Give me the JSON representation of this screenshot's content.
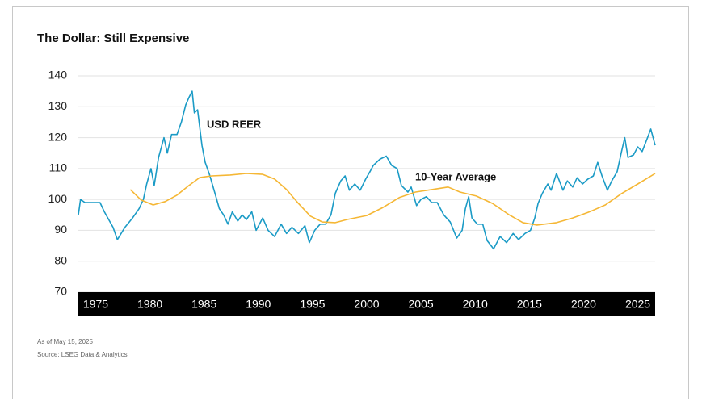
{
  "chart_data": {
    "type": "line",
    "title": "The Dollar: Still Expensive",
    "annotations": [
      "USD REER",
      "10-Year Average"
    ],
    "notes": [
      "As of May 15, 2025",
      "Source: LSEG Data & Analytics"
    ],
    "xlim": [
      1973.4,
      2026.6
    ],
    "xticks": [
      1975,
      1980,
      1985,
      1990,
      1995,
      2000,
      2005,
      2010,
      2015,
      2020,
      2025
    ],
    "ylim": [
      70,
      140
    ],
    "yticks": [
      70,
      80,
      90,
      100,
      110,
      120,
      130,
      140
    ],
    "grid": true,
    "series": [
      {
        "name": "USD REER",
        "color": "#1b9bc6",
        "x": [
          1973.4,
          1973.6,
          1974.0,
          1975.4,
          1975.8,
          1976.6,
          1977.0,
          1977.7,
          1978.4,
          1979.0,
          1979.4,
          1979.7,
          1980.1,
          1980.4,
          1980.8,
          1981.3,
          1981.6,
          1982.0,
          1982.5,
          1982.9,
          1983.3,
          1983.6,
          1983.9,
          1984.1,
          1984.4,
          1984.8,
          1985.1,
          1985.5,
          1986.0,
          1986.4,
          1986.8,
          1987.2,
          1987.6,
          1988.1,
          1988.5,
          1988.9,
          1989.4,
          1989.8,
          1990.4,
          1990.9,
          1991.5,
          1992.1,
          1992.6,
          1993.1,
          1993.7,
          1994.3,
          1994.7,
          1995.2,
          1995.7,
          1996.2,
          1996.7,
          1997.1,
          1997.6,
          1998.0,
          1998.4,
          1998.9,
          1999.4,
          1999.9,
          2000.3,
          2000.6,
          2001.2,
          2001.8,
          2002.3,
          2002.8,
          2003.2,
          2003.8,
          2004.1,
          2004.6,
          2005.0,
          2005.5,
          2006.0,
          2006.5,
          2007.1,
          2007.7,
          2008.3,
          2008.8,
          2009.1,
          2009.4,
          2009.7,
          2010.2,
          2010.7,
          2011.1,
          2011.7,
          2012.3,
          2012.9,
          2013.5,
          2014.0,
          2014.6,
          2015.1,
          2015.5,
          2015.8,
          2016.2,
          2016.7,
          2017.0,
          2017.5,
          2018.1,
          2018.5,
          2019.0,
          2019.4,
          2019.9,
          2020.4,
          2020.9,
          2021.3,
          2021.7,
          2022.2,
          2022.6,
          2023.1,
          2023.5,
          2023.8,
          2024.1,
          2024.6,
          2025.0,
          2025.4,
          2025.9,
          2026.2,
          2026.6
        ],
        "values": [
          95,
          100,
          99,
          99,
          96,
          91,
          87,
          91,
          94,
          97,
          100,
          105,
          110,
          104.5,
          113.6,
          120,
          115,
          121,
          121,
          125,
          130.6,
          133,
          135,
          128,
          129,
          117.5,
          112,
          108,
          102,
          97,
          95,
          92,
          96,
          93,
          95,
          93.5,
          96,
          90,
          94,
          90,
          88,
          92,
          89,
          91,
          89,
          91.5,
          86,
          90,
          92,
          92,
          95,
          102,
          106,
          107.6,
          103,
          105,
          103,
          106.6,
          109,
          111,
          113,
          114,
          111,
          110,
          104.5,
          102.4,
          104,
          98,
          100,
          100.9,
          99,
          99,
          95,
          92.7,
          87.5,
          90,
          97,
          100.9,
          94,
          92,
          92,
          86.7,
          84,
          88,
          86,
          89,
          87,
          89,
          90,
          94,
          98.7,
          102,
          105,
          103,
          108.4,
          103,
          106,
          104,
          107,
          105,
          106.6,
          107.6,
          112,
          107.6,
          103,
          106,
          109,
          115.5,
          120,
          113.6,
          114.4,
          117,
          115.5,
          120,
          122.8,
          117.5
        ]
      },
      {
        "name": "10-Year Average",
        "color": "#f5b735",
        "x": [
          1978.2,
          1979.2,
          1980.3,
          1981.4,
          1982.5,
          1983.6,
          1984.6,
          1985.7,
          1987.4,
          1988.9,
          1990.4,
          1991.5,
          1992.6,
          1993.7,
          1994.8,
          1995.9,
          1997.1,
          1998.2,
          2000.0,
          2001.5,
          2003.0,
          2004.5,
          2006.0,
          2007.5,
          2008.6,
          2010.1,
          2011.6,
          2013.1,
          2014.4,
          2015.7,
          2017.5,
          2019.0,
          2020.5,
          2022.0,
          2023.5,
          2025.0,
          2026.6
        ],
        "values": [
          103.2,
          99.8,
          98.2,
          99.3,
          101.4,
          104.5,
          107.1,
          107.6,
          107.9,
          108.4,
          108.1,
          106.6,
          103.2,
          98.7,
          94.6,
          92.7,
          92.5,
          93.5,
          94.8,
          97.4,
          100.6,
          102.4,
          103.2,
          104,
          102.4,
          101.1,
          98.7,
          95.1,
          92.5,
          91.7,
          92.5,
          94,
          95.9,
          98.2,
          101.9,
          105,
          108.4
        ]
      }
    ]
  }
}
